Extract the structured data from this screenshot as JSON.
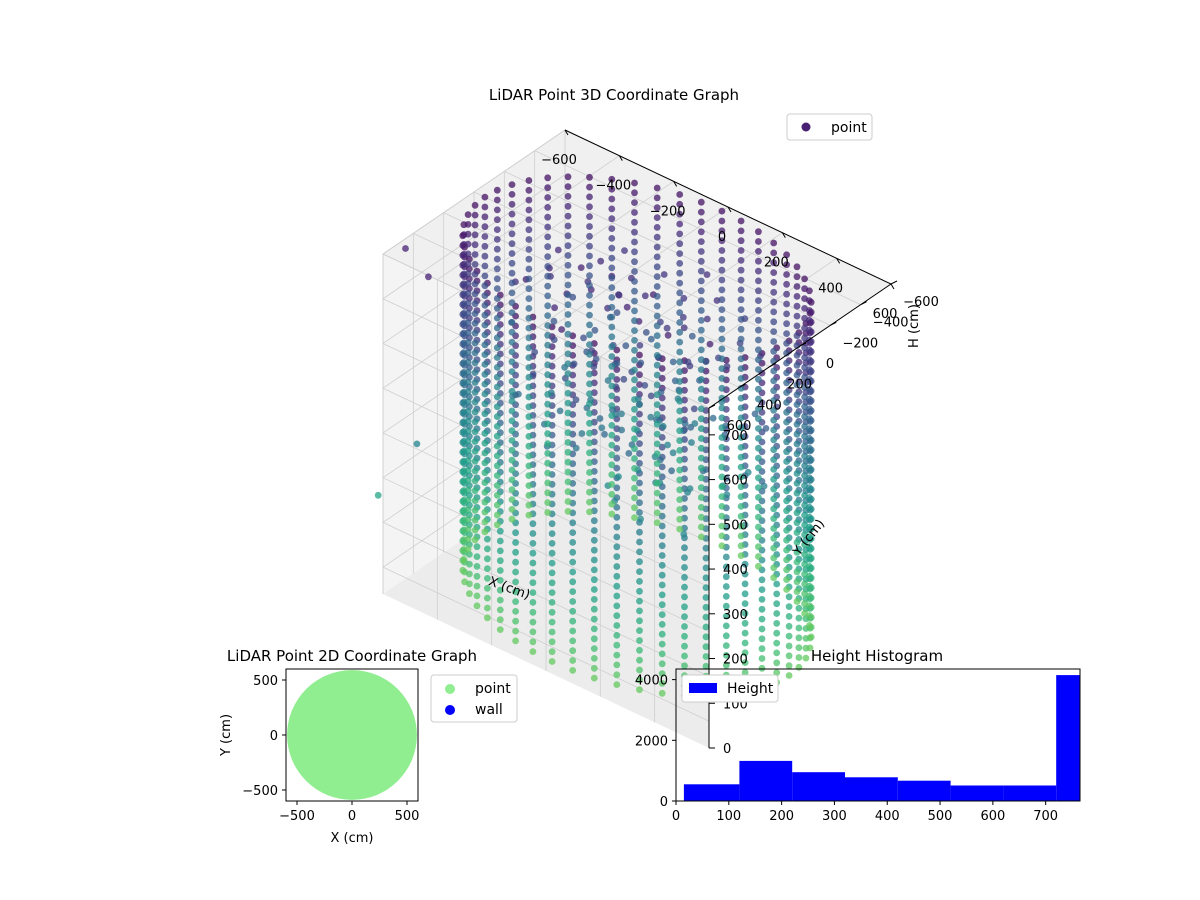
{
  "chart_data": [
    {
      "type": "scatter",
      "projection": "3d",
      "title": "LiDAR Point 3D Coordinate Graph",
      "xlabel": "X (cm)",
      "ylabel": "Y (cm)",
      "zlabel": "H (cm)",
      "xlim": [
        -600,
        600
      ],
      "ylim": [
        -600,
        600
      ],
      "zlim": [
        0,
        760
      ],
      "z_inverted": true,
      "xticks": [
        "−600",
        "−400",
        "−200",
        "0",
        "200",
        "400",
        "600"
      ],
      "yticks": [
        "−600",
        "−400",
        "−200",
        "0",
        "200",
        "400",
        "600"
      ],
      "zticks": [
        "0",
        "100",
        "200",
        "300",
        "400",
        "500",
        "600",
        "700"
      ],
      "legend": {
        "position": "upper-right",
        "entries": [
          {
            "name": "point",
            "color": "#482173"
          }
        ]
      },
      "colormap": "viridis",
      "series": [
        {
          "name": "point",
          "shape": "cylindrical wall",
          "wall_radius": 560,
          "height_range": [
            0,
            760
          ],
          "scan_columns": 48,
          "outliers": [
            {
              "x": -640,
              "y": 380,
              "h": 50
            },
            {
              "x": -500,
              "y": 480,
              "h": 50
            },
            {
              "x": -640,
              "y": 560,
              "h": 560
            },
            {
              "x": -520,
              "y": 520,
              "h": 420
            }
          ]
        }
      ],
      "grid": true
    },
    {
      "type": "scatter",
      "title": "LiDAR Point 2D Coordinate Graph",
      "xlabel": "X (cm)",
      "ylabel": "Y (cm)",
      "xlim": [
        -600,
        600
      ],
      "ylim": [
        -600,
        600
      ],
      "xticks": [
        -500,
        0,
        500
      ],
      "yticks": [
        -500,
        0,
        500
      ],
      "legend": {
        "position": "outside-right",
        "entries": [
          {
            "name": "point",
            "color": "#90ee90"
          },
          {
            "name": "wall",
            "color": "#0000ff"
          }
        ]
      },
      "series": [
        {
          "name": "point",
          "color": "#90ee90",
          "shape": "filled disk",
          "radius": 590
        },
        {
          "name": "wall",
          "color": "#0000ff",
          "values": []
        }
      ]
    },
    {
      "type": "bar",
      "subtype": "histogram",
      "title": "Height Histogram",
      "xlabel": "",
      "ylabel": "",
      "xlim": [
        0,
        765
      ],
      "ylim": [
        0,
        4350
      ],
      "xticks": [
        0,
        100,
        200,
        300,
        400,
        500,
        600,
        700
      ],
      "yticks": [
        0,
        2000,
        4000
      ],
      "legend": {
        "position": "upper-left",
        "entries": [
          {
            "name": "Height",
            "color": "#0000ff"
          }
        ]
      },
      "bin_edges": [
        15,
        120,
        220,
        320,
        420,
        520,
        620,
        720,
        765
      ],
      "series": [
        {
          "name": "Height",
          "color": "#0000ff",
          "values": [
            550,
            1320,
            950,
            780,
            670,
            510,
            510,
            4150
          ]
        }
      ]
    }
  ]
}
